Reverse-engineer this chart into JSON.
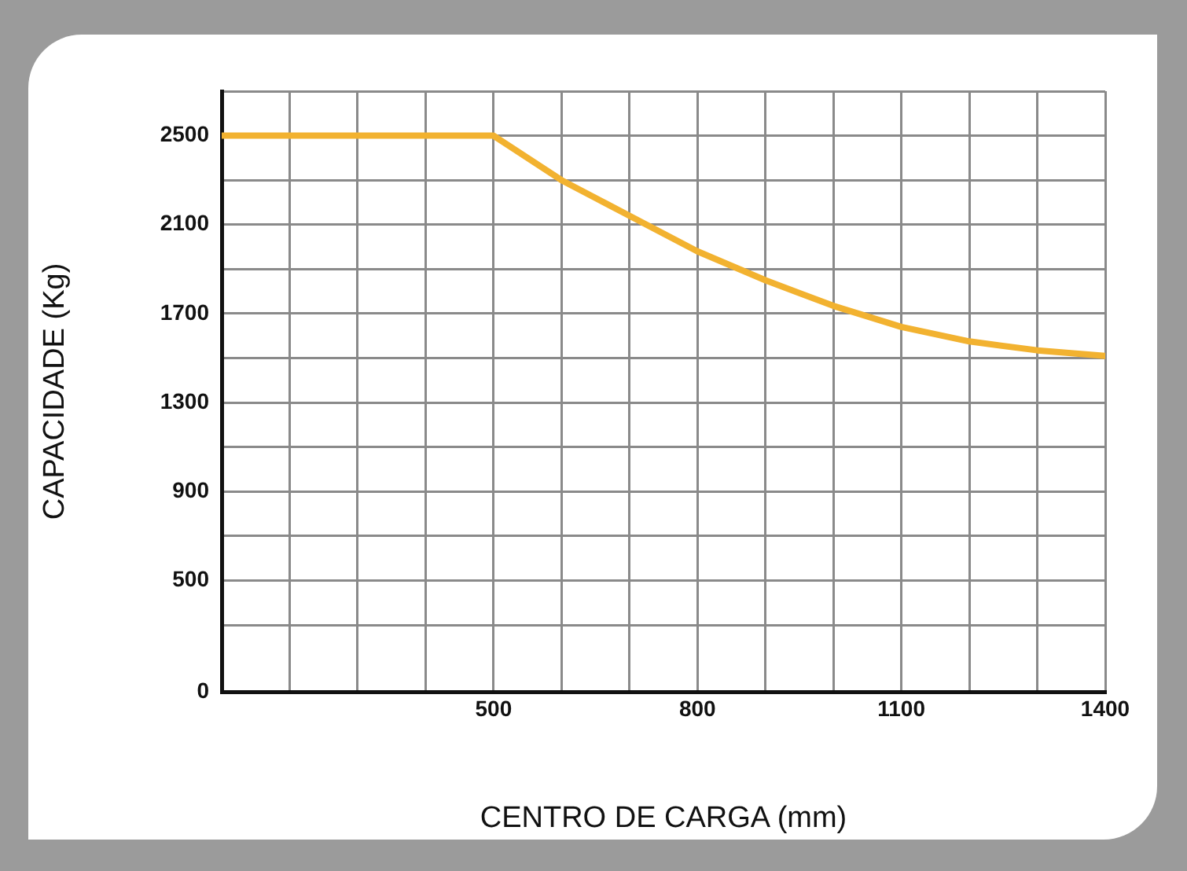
{
  "chart_data": {
    "type": "line",
    "xlabel": "CENTRO DE CARGA (mm)",
    "ylabel": "CAPACIDADE (Kg)",
    "x": [
      100,
      500,
      600,
      700,
      800,
      900,
      1000,
      1100,
      1200,
      1300,
      1400
    ],
    "series": [
      {
        "color": "#f2b230",
        "values": [
          2500,
          2500,
          2300,
          2140,
          1980,
          1850,
          1735,
          1640,
          1575,
          1535,
          1510
        ]
      }
    ],
    "xlim": [
      100,
      1400
    ],
    "xticks": [
      {
        "value": 100,
        "label": null
      },
      {
        "value": 200,
        "label": null
      },
      {
        "value": 300,
        "label": null
      },
      {
        "value": 400,
        "label": null
      },
      500,
      {
        "value": 600,
        "label": null
      },
      {
        "value": 700,
        "label": null
      },
      800,
      {
        "value": 900,
        "label": null
      },
      {
        "value": 1000,
        "label": null
      },
      1100,
      {
        "value": 1200,
        "label": null
      },
      {
        "value": 1300,
        "label": null
      },
      1400
    ],
    "ylim": [
      0,
      2700
    ],
    "yticks": [
      0,
      {
        "value": 300,
        "label": null
      },
      500,
      {
        "value": 700,
        "label": null
      },
      900,
      {
        "value": 1100,
        "label": null
      },
      1300,
      {
        "value": 1500,
        "label": null
      },
      1700,
      {
        "value": 1900,
        "label": null
      },
      2100,
      {
        "value": 2300,
        "label": null
      },
      2500,
      {
        "value": 2700,
        "label": null
      }
    ],
    "grid": true,
    "legend": false,
    "marker": "none",
    "line_style": "solid"
  }
}
